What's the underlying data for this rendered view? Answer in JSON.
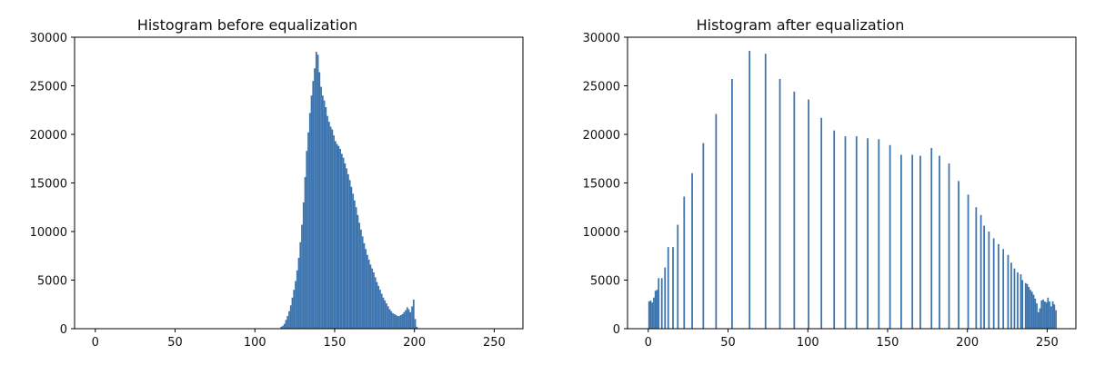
{
  "chart_data": [
    {
      "type": "bar",
      "title": "Histogram before equalization",
      "xlabel": "",
      "ylabel": "",
      "xlim": [
        -13,
        268
      ],
      "ylim": [
        0,
        30000
      ],
      "xticks": [
        0,
        50,
        100,
        150,
        200,
        250
      ],
      "yticks": [
        0,
        5000,
        10000,
        15000,
        20000,
        25000,
        30000
      ],
      "grid": false,
      "color": "#3a73ae",
      "bar_width": 1,
      "bins": [
        [
          116,
          200
        ],
        [
          117,
          300
        ],
        [
          118,
          500
        ],
        [
          119,
          900
        ],
        [
          120,
          1300
        ],
        [
          121,
          1800
        ],
        [
          122,
          2400
        ],
        [
          123,
          3200
        ],
        [
          124,
          4000
        ],
        [
          125,
          4900
        ],
        [
          126,
          6000
        ],
        [
          127,
          7300
        ],
        [
          128,
          8900
        ],
        [
          129,
          10700
        ],
        [
          130,
          13000
        ],
        [
          131,
          15600
        ],
        [
          132,
          18300
        ],
        [
          133,
          20200
        ],
        [
          134,
          22200
        ],
        [
          135,
          24000
        ],
        [
          136,
          25500
        ],
        [
          137,
          26800
        ],
        [
          138,
          28500
        ],
        [
          139,
          28200
        ],
        [
          140,
          26400
        ],
        [
          141,
          24900
        ],
        [
          142,
          24000
        ],
        [
          143,
          23500
        ],
        [
          144,
          22800
        ],
        [
          145,
          21900
        ],
        [
          146,
          21300
        ],
        [
          147,
          20800
        ],
        [
          148,
          20500
        ],
        [
          149,
          19900
        ],
        [
          150,
          19300
        ],
        [
          151,
          19000
        ],
        [
          152,
          18800
        ],
        [
          153,
          18500
        ],
        [
          154,
          18000
        ],
        [
          155,
          17600
        ],
        [
          156,
          17000
        ],
        [
          157,
          16500
        ],
        [
          158,
          15900
        ],
        [
          159,
          15300
        ],
        [
          160,
          14600
        ],
        [
          161,
          13900
        ],
        [
          162,
          13200
        ],
        [
          163,
          12500
        ],
        [
          164,
          11700
        ],
        [
          165,
          10900
        ],
        [
          166,
          10200
        ],
        [
          167,
          9500
        ],
        [
          168,
          8800
        ],
        [
          169,
          8200
        ],
        [
          170,
          7600
        ],
        [
          171,
          7100
        ],
        [
          172,
          6600
        ],
        [
          173,
          6200
        ],
        [
          174,
          5800
        ],
        [
          175,
          5300
        ],
        [
          176,
          4800
        ],
        [
          177,
          4400
        ],
        [
          178,
          4000
        ],
        [
          179,
          3600
        ],
        [
          180,
          3200
        ],
        [
          181,
          2900
        ],
        [
          182,
          2600
        ],
        [
          183,
          2300
        ],
        [
          184,
          2000
        ],
        [
          185,
          1800
        ],
        [
          186,
          1600
        ],
        [
          187,
          1500
        ],
        [
          188,
          1400
        ],
        [
          189,
          1300
        ],
        [
          190,
          1300
        ],
        [
          191,
          1400
        ],
        [
          192,
          1500
        ],
        [
          193,
          1700
        ],
        [
          194,
          1900
        ],
        [
          195,
          2200
        ],
        [
          196,
          2000
        ],
        [
          197,
          1700
        ],
        [
          198,
          2300
        ],
        [
          199,
          3000
        ],
        [
          200,
          1000
        ],
        [
          201,
          200
        ]
      ]
    },
    {
      "type": "bar",
      "title": "Histogram after equalization",
      "xlabel": "",
      "ylabel": "",
      "xlim": [
        -13,
        268
      ],
      "ylim": [
        0,
        30000
      ],
      "xticks": [
        0,
        50,
        100,
        150,
        200,
        250
      ],
      "yticks": [
        0,
        5000,
        10000,
        15000,
        20000,
        25000,
        30000
      ],
      "grid": false,
      "color": "#3a73ae",
      "bar_width": 1,
      "bins": [
        [
          0,
          2800
        ],
        [
          1,
          2900
        ],
        [
          2,
          2700
        ],
        [
          3,
          3200
        ],
        [
          4,
          3900
        ],
        [
          5,
          4000
        ],
        [
          6,
          5200
        ],
        [
          8,
          5200
        ],
        [
          10,
          6300
        ],
        [
          12,
          8400
        ],
        [
          15,
          8400
        ],
        [
          18,
          10700
        ],
        [
          22,
          13600
        ],
        [
          27,
          16000
        ],
        [
          34,
          19100
        ],
        [
          42,
          22100
        ],
        [
          52,
          25700
        ],
        [
          63,
          28600
        ],
        [
          73,
          28300
        ],
        [
          82,
          25700
        ],
        [
          91,
          24400
        ],
        [
          100,
          23600
        ],
        [
          108,
          21700
        ],
        [
          116,
          20400
        ],
        [
          123,
          19800
        ],
        [
          130,
          19800
        ],
        [
          137,
          19600
        ],
        [
          144,
          19500
        ],
        [
          151,
          18900
        ],
        [
          158,
          17900
        ],
        [
          165,
          17900
        ],
        [
          170,
          17800
        ],
        [
          177,
          18600
        ],
        [
          182,
          17800
        ],
        [
          188,
          17000
        ],
        [
          194,
          15200
        ],
        [
          200,
          13800
        ],
        [
          205,
          12500
        ],
        [
          208,
          11700
        ],
        [
          210,
          10600
        ],
        [
          213,
          10000
        ],
        [
          216,
          9300
        ],
        [
          219,
          8700
        ],
        [
          222,
          8200
        ],
        [
          225,
          7600
        ],
        [
          227,
          6800
        ],
        [
          229,
          6200
        ],
        [
          231,
          5800
        ],
        [
          233,
          5600
        ],
        [
          234,
          5000
        ],
        [
          236,
          4700
        ],
        [
          237,
          4600
        ],
        [
          238,
          4300
        ],
        [
          239,
          4000
        ],
        [
          240,
          3800
        ],
        [
          241,
          3500
        ],
        [
          242,
          3100
        ],
        [
          243,
          2600
        ],
        [
          244,
          1700
        ],
        [
          245,
          2100
        ],
        [
          246,
          2900
        ],
        [
          247,
          3000
        ],
        [
          248,
          2800
        ],
        [
          249,
          2700
        ],
        [
          250,
          3200
        ],
        [
          251,
          2800
        ],
        [
          252,
          2300
        ],
        [
          253,
          2800
        ],
        [
          254,
          2500
        ],
        [
          255,
          1900
        ]
      ]
    }
  ]
}
